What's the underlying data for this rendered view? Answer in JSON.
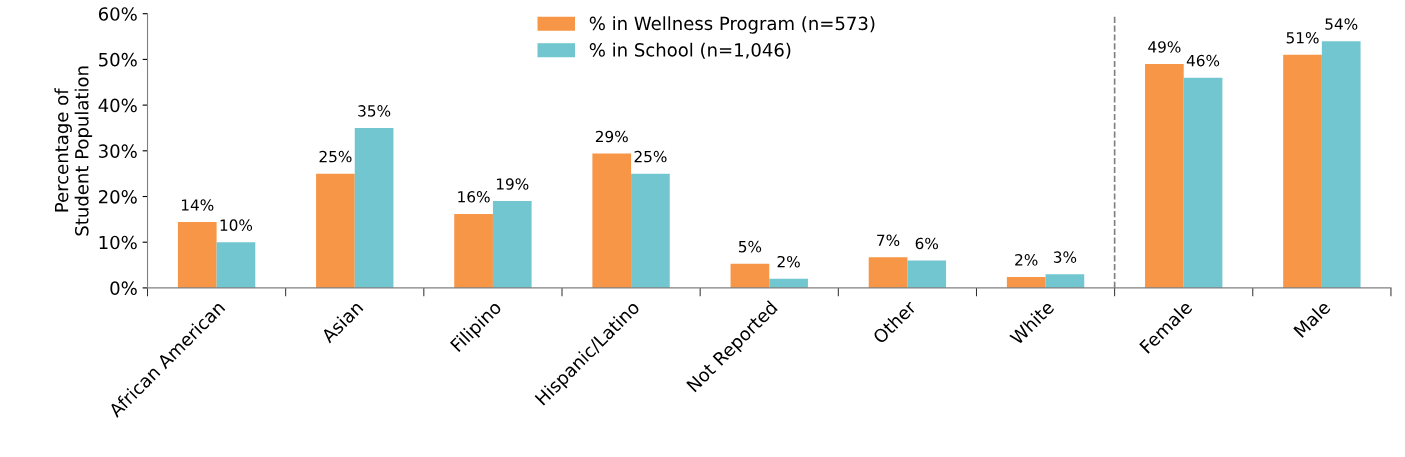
{
  "chart_data": {
    "type": "bar",
    "ylabel": "Percentage of\nStudent Population",
    "categories": [
      "African American",
      "Asian",
      "Filipino",
      "Hispanic/Latino",
      "Not Reported",
      "Other",
      "White",
      "Female",
      "Male"
    ],
    "series": [
      {
        "name": "% in Wellness Program (n=573)",
        "color": "#f79646",
        "values": [
          14.4,
          25,
          16.2,
          29.4,
          5.3,
          6.7,
          2.4,
          49,
          51
        ],
        "value_labels": [
          "14%",
          "25%",
          "16%",
          "29%",
          "5%",
          "7%",
          "2%",
          "49%",
          "51%"
        ]
      },
      {
        "name": "% in School (n=1,046)",
        "color": "#72c6d0",
        "values": [
          10,
          35,
          19,
          25,
          2,
          6,
          3,
          46,
          54
        ],
        "value_labels": [
          "10%",
          "35%",
          "19%",
          "25%",
          "2%",
          "6%",
          "3%",
          "46%",
          "54%"
        ]
      }
    ],
    "ylim": [
      0,
      60
    ],
    "yticks": [
      {
        "value": 0,
        "label": "0%"
      },
      {
        "value": 10,
        "label": "10%"
      },
      {
        "value": 20,
        "label": "20%"
      },
      {
        "value": 30,
        "label": "30%"
      },
      {
        "value": 40,
        "label": "40%"
      },
      {
        "value": 50,
        "label": "50%"
      },
      {
        "value": 60,
        "label": "60%"
      }
    ],
    "grid": false,
    "legend": "top"
  }
}
